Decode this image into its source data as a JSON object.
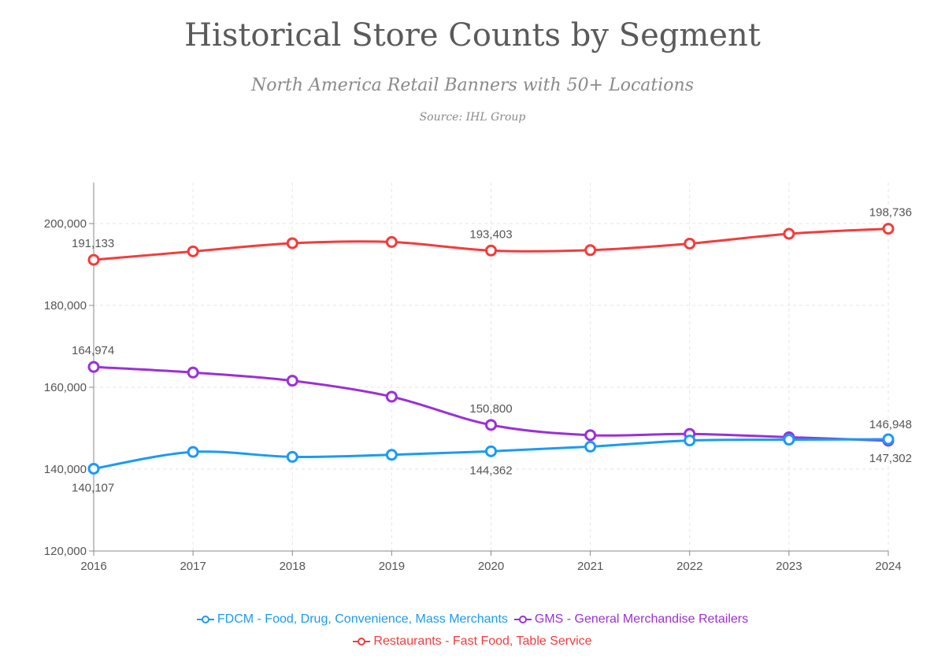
{
  "chart_data": {
    "type": "line",
    "title": "Historical Store Counts by Segment",
    "subtitle": "North America Retail Banners with 50+ Locations",
    "source": "Source: IHL Group",
    "categories": [
      "2016",
      "2017",
      "2018",
      "2019",
      "2020",
      "2021",
      "2022",
      "2023",
      "2024"
    ],
    "ylim": [
      120000,
      210000
    ],
    "yticks": [
      120000,
      140000,
      160000,
      180000,
      200000
    ],
    "ytick_labels": [
      "120,000",
      "140,000",
      "160,000",
      "180,000",
      "200,000"
    ],
    "grid": true,
    "legend_position": "bottom",
    "series": [
      {
        "name": "Restaurants - Fast Food, Table Service",
        "color": "#f53b3b",
        "values": [
          191133,
          193200,
          195200,
          195500,
          193403,
          193500,
          195100,
          197500,
          198736
        ],
        "labels": [
          {
            "index": 0,
            "text": "191,133",
            "pos": "above"
          },
          {
            "index": 4,
            "text": "193,403",
            "pos": "above"
          },
          {
            "index": 8,
            "text": "198,736",
            "pos": "above"
          }
        ]
      },
      {
        "name": "GMS - General Merchandise Retailers",
        "color": "#9b30d9",
        "values": [
          164974,
          163600,
          161600,
          157700,
          150800,
          148300,
          148600,
          147800,
          146948
        ],
        "labels": [
          {
            "index": 0,
            "text": "164,974",
            "pos": "above"
          },
          {
            "index": 4,
            "text": "150,800",
            "pos": "above"
          },
          {
            "index": 8,
            "text": "146,948",
            "pos": "above"
          }
        ]
      },
      {
        "name": "FDCM - Food, Drug, Convenience, Mass Merchants",
        "color": "#1a9bf5",
        "values": [
          140107,
          144200,
          143000,
          143500,
          144362,
          145500,
          147000,
          147200,
          147302
        ],
        "labels": [
          {
            "index": 0,
            "text": "140,107",
            "pos": "below"
          },
          {
            "index": 4,
            "text": "144,362",
            "pos": "below"
          },
          {
            "index": 8,
            "text": "147,302",
            "pos": "below"
          }
        ]
      }
    ],
    "legend": [
      [
        "FDCM - Food, Drug, Convenience, Mass Merchants",
        "GMS - General Merchandise Retailers"
      ],
      [
        "Restaurants - Fast Food, Table Service"
      ]
    ]
  }
}
